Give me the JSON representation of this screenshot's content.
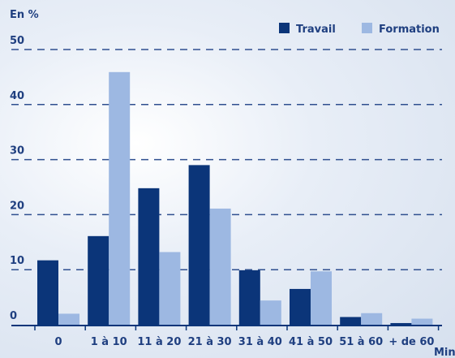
{
  "colors": {
    "travail": "#0b3579",
    "formation": "#9db8e2",
    "text": "#1f3f80",
    "grid": "#2f4f8f"
  },
  "chart_data": {
    "type": "bar",
    "title": "",
    "ylabel": "En %",
    "xlabel": "Min",
    "ylim": [
      0,
      50
    ],
    "yticks": [
      0,
      10,
      20,
      30,
      40,
      50
    ],
    "grid": true,
    "legend_position": "top-right",
    "categories": [
      "0",
      "1 à 10",
      "11 à 20",
      "21 à 30",
      "31 à 40",
      "41 à 50",
      "51 à 60",
      "+ de 60"
    ],
    "series": [
      {
        "name": "Travail",
        "values": [
          11.7,
          16.1,
          24.8,
          29.0,
          9.9,
          6.5,
          1.4,
          0.3
        ]
      },
      {
        "name": "Formation",
        "values": [
          2.0,
          45.9,
          13.2,
          21.1,
          4.4,
          9.7,
          2.1,
          1.1
        ]
      }
    ]
  }
}
